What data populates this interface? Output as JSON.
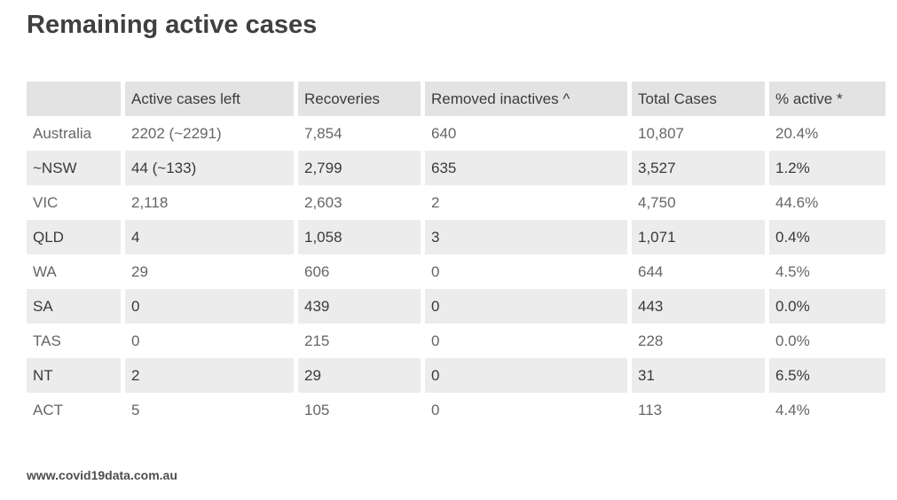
{
  "title": "Remaining active cases",
  "footer": {
    "source_url": "www.covid19data.com.au"
  },
  "colors": {
    "header_bg": "#e3e3e3",
    "shaded_row_bg": "#ececec",
    "light_row_text": "#666666",
    "shaded_row_text": "#3a3a3a",
    "title_text": "#404040"
  },
  "chart_data": {
    "type": "table",
    "title": "Remaining active cases",
    "columns": [
      "",
      "Active cases left",
      "Recoveries",
      "Removed inactives ^",
      "Total Cases",
      "% active *"
    ],
    "rows": [
      [
        "Australia",
        "2202 (~2291)",
        "7,854",
        "640",
        "10,807",
        "20.4%"
      ],
      [
        "~NSW",
        "44 (~133)",
        "2,799",
        "635",
        "3,527",
        "1.2%"
      ],
      [
        "VIC",
        "2,118",
        "2,603",
        "2",
        "4,750",
        "44.6%"
      ],
      [
        "QLD",
        "4",
        "1,058",
        "3",
        "1,071",
        "0.4%"
      ],
      [
        "WA",
        "29",
        "606",
        "0",
        "644",
        "4.5%"
      ],
      [
        "SA",
        "0",
        "439",
        "0",
        "443",
        "0.0%"
      ],
      [
        "TAS",
        "0",
        "215",
        "0",
        "228",
        "0.0%"
      ],
      [
        "NT",
        "2",
        "29",
        "0",
        "31",
        "6.5%"
      ],
      [
        "ACT",
        "5",
        "105",
        "0",
        "113",
        "4.4%"
      ]
    ],
    "layout": {
      "striped": "every second data row shaded",
      "source_note": "www.covid19data.com.au"
    }
  }
}
